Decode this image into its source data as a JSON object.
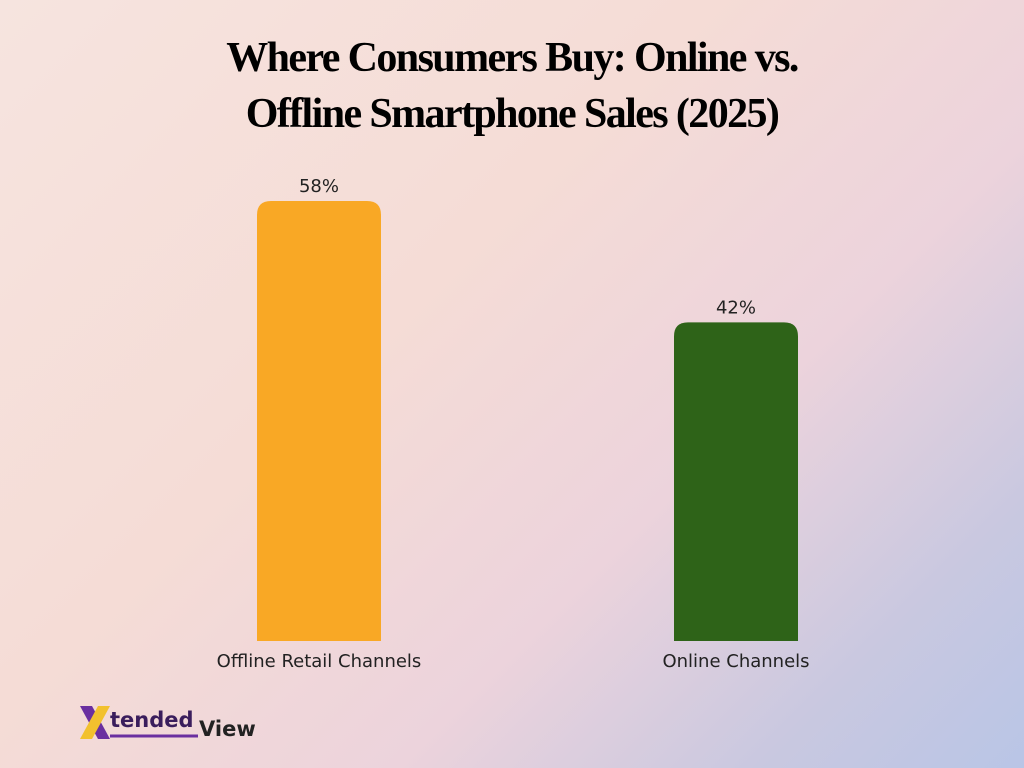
{
  "chart_data": {
    "type": "bar",
    "title": "Where Consumers Buy: Online vs. Offline Smartphone Sales (2025)",
    "categories": [
      "Offline Retail Channels",
      "Online Channels"
    ],
    "values": [
      58,
      42
    ],
    "value_labels": [
      "58%",
      "42%"
    ],
    "colors": [
      "#f9a825",
      "#2e6318"
    ]
  },
  "logo": {
    "mark": "X",
    "part1": "tended",
    "part2": "View"
  }
}
